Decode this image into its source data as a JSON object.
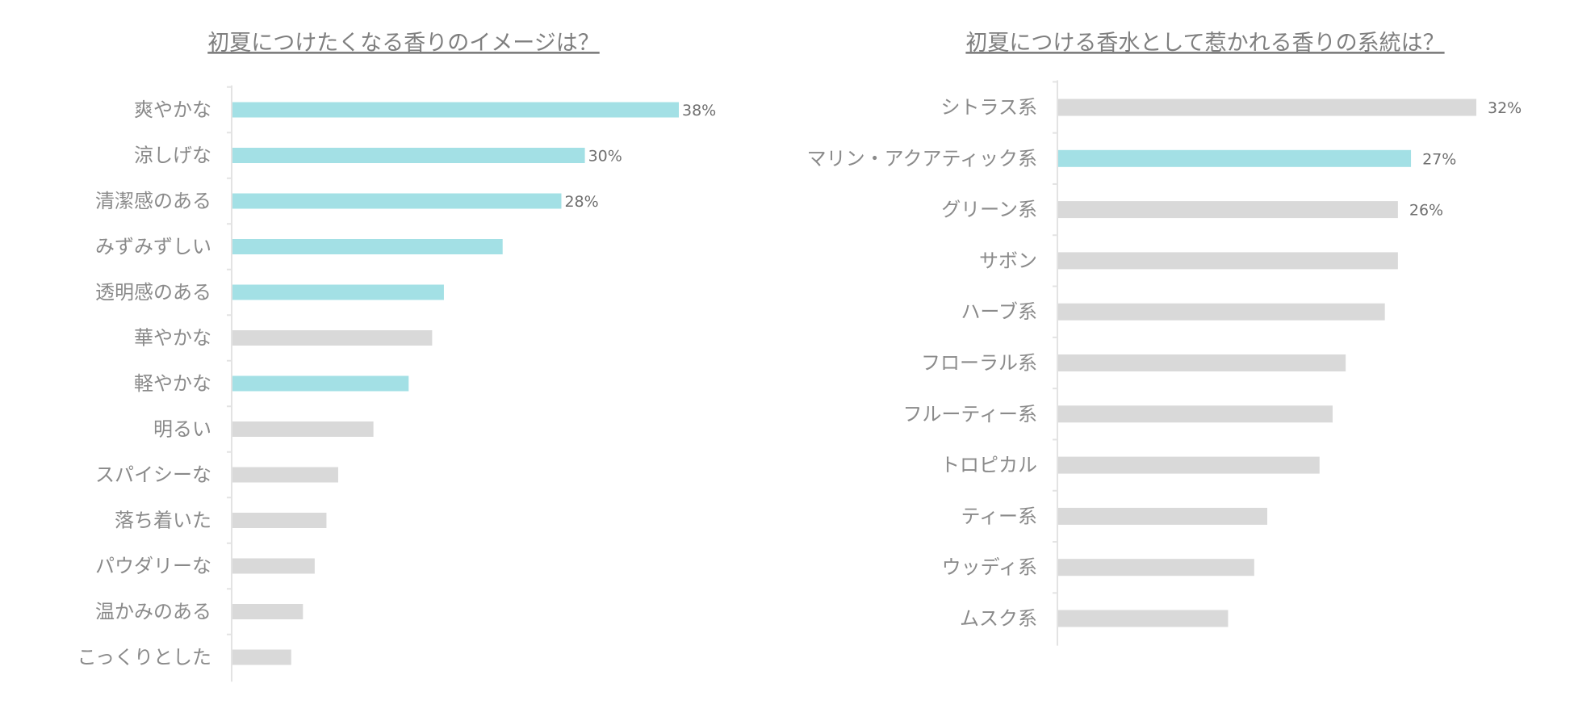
{
  "colors": {
    "highlight": "#a3e0e5",
    "normal": "#d9d9d9",
    "axis": "#e3e3e3",
    "title": "#7f7f7f",
    "label": "#8a8a8a",
    "value": "#6f6f6f"
  },
  "chart_data": [
    {
      "type": "bar",
      "orientation": "horizontal",
      "title": "初夏につけたくなる香りのイメージは？",
      "xlabel": "",
      "ylabel": "",
      "xlim": [
        0,
        38
      ],
      "grid": false,
      "categories": [
        "爽やかな",
        "涼しげな",
        "清潔感のある",
        "みずみずしい",
        "透明感のある",
        "華やかな",
        "軽やかな",
        "明るい",
        "スパイシーな",
        "落ち着いた",
        "パウダリーな",
        "温かみのある",
        "こっくりとした"
      ],
      "values": [
        38,
        30,
        28,
        23,
        18,
        17,
        15,
        12,
        9,
        8,
        7,
        6,
        5
      ],
      "highlighted": [
        true,
        true,
        true,
        true,
        true,
        false,
        true,
        false,
        false,
        false,
        false,
        false,
        false
      ],
      "value_labels": [
        "38%",
        "30%",
        "28%",
        "",
        "",
        "",
        "",
        "",
        "",
        "",
        "",
        "",
        ""
      ]
    },
    {
      "type": "bar",
      "orientation": "horizontal",
      "title": "初夏につける香水として惹かれる香りの系統は？",
      "xlabel": "",
      "ylabel": "",
      "xlim": [
        0,
        32
      ],
      "grid": false,
      "categories": [
        "シトラス系",
        "マリン・アクアティック系",
        "グリーン系",
        "サボン",
        "ハーブ系",
        "フローラル系",
        "フルーティー系",
        "トロピカル",
        "ティー系",
        "ウッディ系",
        "ムスク系"
      ],
      "values": [
        32,
        27,
        26,
        26,
        25,
        22,
        21,
        20,
        16,
        15,
        13
      ],
      "highlighted": [
        false,
        true,
        false,
        false,
        false,
        false,
        false,
        false,
        false,
        false,
        false
      ],
      "value_labels": [
        "32%",
        "27%",
        "26%",
        "",
        "",
        "",
        "",
        "",
        "",
        "",
        ""
      ]
    }
  ]
}
